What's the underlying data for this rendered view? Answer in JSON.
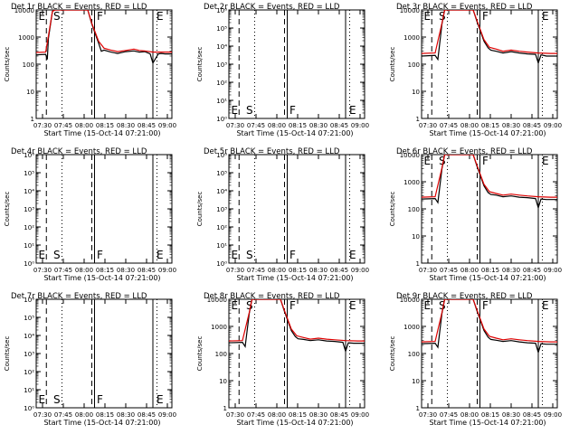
{
  "chart_data": [
    {
      "type": "line",
      "title": "Det 1r BLACK = Events, RED = LLD",
      "xlabel": "Start Time (15-Oct-14 07:21:00)",
      "ylabel": "Counts/sec",
      "yscale": "log",
      "ylim": [
        1,
        10000
      ],
      "yticks": [
        "1",
        "10",
        "100",
        "1000",
        "10000"
      ],
      "xticks": [
        "07:30",
        "07:45",
        "08:00",
        "08:15",
        "08:30",
        "08:45",
        "09:00"
      ],
      "markers": [
        "E",
        "S",
        "F",
        "E"
      ],
      "has_data": true,
      "series": [
        {
          "color": "#000000",
          "x": [
            0.0,
            0.07,
            0.082,
            0.09,
            0.12,
            0.14,
            0.16,
            0.18,
            0.2,
            0.21,
            0.22,
            0.24,
            0.26,
            0.27,
            0.3,
            0.32,
            0.36,
            0.38,
            0.41,
            0.46,
            0.48,
            0.5,
            0.55,
            0.6,
            0.66,
            0.72,
            0.76,
            0.8,
            0.84,
            0.86,
            0.9,
            0.92,
            0.95,
            1.0
          ],
          "y": [
            220,
            230,
            150,
            900,
            9000,
            9999,
            9999,
            9999,
            9999,
            9999,
            9999,
            9999,
            9999,
            9999,
            9999,
            9999,
            9999,
            9999,
            3000,
            600,
            300,
            330,
            280,
            250,
            290,
            310,
            280,
            290,
            240,
            110,
            240,
            250,
            240,
            240
          ]
        },
        {
          "color": "#dd0000",
          "x": [
            0.0,
            0.07,
            0.09,
            0.12,
            0.14,
            0.2,
            0.3,
            0.36,
            0.38,
            0.41,
            0.46,
            0.5,
            0.55,
            0.6,
            0.66,
            0.72,
            0.76,
            0.8,
            0.86,
            0.95,
            1.0
          ],
          "y": [
            270,
            280,
            1100,
            9000,
            9999,
            9999,
            9999,
            9999,
            9999,
            3200,
            700,
            390,
            330,
            290,
            320,
            360,
            320,
            310,
            280,
            280,
            280
          ]
        }
      ]
    },
    {
      "type": "line",
      "title": "Det 2r BLACK = Events, RED = LLD",
      "xlabel": "Start Time (15-Oct-14 07:21:00)",
      "ylabel": "Counts/sec",
      "yscale": "log",
      "ylim": [
        1,
        1000000
      ],
      "yticks": [
        "10⁰",
        "10¹",
        "10²",
        "10³",
        "10⁴",
        "10⁵",
        "10⁶"
      ],
      "xticks": [
        "07:30",
        "07:45",
        "08:00",
        "08:15",
        "08:30",
        "08:45",
        "09:00"
      ],
      "markers": [
        "E",
        "S",
        "F",
        "E"
      ],
      "has_data": false,
      "series": []
    },
    {
      "type": "line",
      "title": "Det 3r BLACK = Events, RED = LLD",
      "xlabel": "Start Time (15-Oct-14 07:21:00)",
      "ylabel": "Counts/sec",
      "yscale": "log",
      "ylim": [
        1,
        10000
      ],
      "yticks": [
        "1",
        "10",
        "100",
        "1000",
        "10000"
      ],
      "xticks": [
        "07:30",
        "07:45",
        "08:00",
        "08:15",
        "08:30",
        "08:45",
        "09:00"
      ],
      "markers": [
        "E",
        "S",
        "F",
        "E"
      ],
      "has_data": true,
      "series": [
        {
          "color": "#000000",
          "x": [
            0.0,
            0.1,
            0.12,
            0.15,
            0.17,
            0.2,
            0.3,
            0.38,
            0.41,
            0.46,
            0.49,
            0.51,
            0.55,
            0.6,
            0.66,
            0.72,
            0.78,
            0.84,
            0.86,
            0.88,
            0.92,
            0.95,
            1.0
          ],
          "y": [
            200,
            210,
            150,
            3000,
            9999,
            9999,
            9999,
            9999,
            3500,
            700,
            400,
            330,
            300,
            260,
            290,
            260,
            240,
            230,
            110,
            220,
            200,
            200,
            200
          ]
        },
        {
          "color": "#dd0000",
          "x": [
            0.0,
            0.1,
            0.15,
            0.17,
            0.2,
            0.3,
            0.38,
            0.41,
            0.46,
            0.5,
            0.55,
            0.6,
            0.66,
            0.72,
            0.78,
            0.86,
            0.95,
            1.0
          ],
          "y": [
            250,
            260,
            3200,
            9999,
            9999,
            9999,
            9999,
            3800,
            800,
            420,
            360,
            300,
            330,
            300,
            280,
            260,
            250,
            250
          ]
        }
      ]
    },
    {
      "type": "line",
      "title": "Det 4r BLACK = Events, RED = LLD",
      "xlabel": "Start Time (15-Oct-14 07:21:00)",
      "ylabel": "Counts/sec",
      "yscale": "log",
      "ylim": [
        1,
        1000000
      ],
      "yticks": [
        "10⁰",
        "10¹",
        "10²",
        "10³",
        "10⁴",
        "10⁵",
        "10⁶"
      ],
      "xticks": [
        "07:30",
        "07:45",
        "08:00",
        "08:15",
        "08:30",
        "08:45",
        "09:00"
      ],
      "markers": [
        "E",
        "S",
        "F",
        "E"
      ],
      "has_data": false,
      "series": []
    },
    {
      "type": "line",
      "title": "Det 5r BLACK = Events, RED = LLD",
      "xlabel": "Start Time (15-Oct-14 07:21:00)",
      "ylabel": "Counts/sec",
      "yscale": "log",
      "ylim": [
        1,
        1000000
      ],
      "yticks": [
        "10⁰",
        "10¹",
        "10²",
        "10³",
        "10⁴",
        "10⁵",
        "10⁶"
      ],
      "xticks": [
        "07:30",
        "07:45",
        "08:00",
        "08:15",
        "08:30",
        "08:45",
        "09:00"
      ],
      "markers": [
        "E",
        "S",
        "F",
        "E"
      ],
      "has_data": false,
      "series": []
    },
    {
      "type": "line",
      "title": "Det 6r BLACK = Events, RED = LLD",
      "xlabel": "Start Time (15-Oct-14 07:21:00)",
      "ylabel": "Counts/sec",
      "yscale": "log",
      "ylim": [
        1,
        10000
      ],
      "yticks": [
        "1",
        "10",
        "100",
        "1000",
        "10000"
      ],
      "xticks": [
        "07:30",
        "07:45",
        "08:00",
        "08:15",
        "08:30",
        "08:45",
        "09:00"
      ],
      "markers": [
        "E",
        "S",
        "F",
        "E"
      ],
      "has_data": true,
      "series": [
        {
          "color": "#000000",
          "x": [
            0.0,
            0.1,
            0.12,
            0.15,
            0.17,
            0.2,
            0.3,
            0.38,
            0.41,
            0.46,
            0.49,
            0.51,
            0.55,
            0.6,
            0.66,
            0.72,
            0.78,
            0.84,
            0.86,
            0.88,
            0.92,
            0.95,
            1.0
          ],
          "y": [
            230,
            240,
            170,
            3000,
            9999,
            9999,
            9999,
            9999,
            3500,
            700,
            400,
            340,
            320,
            280,
            300,
            270,
            260,
            240,
            110,
            230,
            220,
            220,
            220
          ]
        },
        {
          "color": "#dd0000",
          "x": [
            0.0,
            0.1,
            0.15,
            0.17,
            0.2,
            0.3,
            0.38,
            0.41,
            0.46,
            0.5,
            0.55,
            0.6,
            0.66,
            0.72,
            0.78,
            0.86,
            0.95,
            1.0
          ],
          "y": [
            270,
            280,
            3200,
            9999,
            9999,
            9999,
            9999,
            3800,
            800,
            430,
            370,
            320,
            350,
            320,
            300,
            280,
            270,
            270
          ]
        }
      ]
    },
    {
      "type": "line",
      "title": "Det 7r BLACK = Events, RED = LLD",
      "xlabel": "Start Time (15-Oct-14 07:21:00)",
      "ylabel": "Counts/sec",
      "yscale": "log",
      "ylim": [
        1,
        1000000
      ],
      "yticks": [
        "10⁰",
        "10¹",
        "10²",
        "10³",
        "10⁴",
        "10⁵",
        "10⁶"
      ],
      "xticks": [
        "07:30",
        "07:45",
        "08:00",
        "08:15",
        "08:30",
        "08:45",
        "09:00"
      ],
      "markers": [
        "E",
        "S",
        "F",
        "E"
      ],
      "has_data": false,
      "series": []
    },
    {
      "type": "line",
      "title": "Det 8r BLACK = Events, RED = LLD",
      "xlabel": "Start Time (15-Oct-14 07:21:00)",
      "ylabel": "Counts/sec",
      "yscale": "log",
      "ylim": [
        1,
        10000
      ],
      "yticks": [
        "1",
        "10",
        "100",
        "1000",
        "10000"
      ],
      "xticks": [
        "07:30",
        "07:45",
        "08:00",
        "08:15",
        "08:30",
        "08:45",
        "09:00"
      ],
      "markers": [
        "E",
        "S",
        "F",
        "E"
      ],
      "has_data": true,
      "series": [
        {
          "color": "#000000",
          "x": [
            0.0,
            0.1,
            0.12,
            0.15,
            0.17,
            0.2,
            0.3,
            0.38,
            0.41,
            0.46,
            0.49,
            0.51,
            0.55,
            0.6,
            0.66,
            0.72,
            0.78,
            0.84,
            0.86,
            0.88,
            0.92,
            0.95,
            1.0
          ],
          "y": [
            250,
            260,
            180,
            3000,
            9999,
            9999,
            9999,
            9999,
            3500,
            700,
            420,
            350,
            330,
            300,
            320,
            290,
            280,
            260,
            120,
            250,
            240,
            240,
            240
          ]
        },
        {
          "color": "#dd0000",
          "x": [
            0.0,
            0.1,
            0.15,
            0.17,
            0.2,
            0.3,
            0.38,
            0.41,
            0.46,
            0.5,
            0.55,
            0.6,
            0.66,
            0.72,
            0.78,
            0.86,
            0.95,
            1.0
          ],
          "y": [
            290,
            300,
            3200,
            9999,
            9999,
            9999,
            9999,
            3800,
            800,
            450,
            390,
            340,
            370,
            340,
            320,
            300,
            290,
            290
          ]
        }
      ]
    },
    {
      "type": "line",
      "title": "Det 9r BLACK = Events, RED = LLD",
      "xlabel": "Start Time (15-Oct-14 07:21:00)",
      "ylabel": "Counts/sec",
      "yscale": "log",
      "ylim": [
        1,
        10000
      ],
      "yticks": [
        "1",
        "10",
        "100",
        "1000",
        "10000"
      ],
      "xticks": [
        "07:30",
        "07:45",
        "08:00",
        "08:15",
        "08:30",
        "08:45",
        "09:00"
      ],
      "markers": [
        "E",
        "S",
        "F",
        "E"
      ],
      "has_data": true,
      "series": [
        {
          "color": "#000000",
          "x": [
            0.0,
            0.1,
            0.12,
            0.15,
            0.17,
            0.2,
            0.3,
            0.38,
            0.41,
            0.46,
            0.49,
            0.51,
            0.55,
            0.6,
            0.66,
            0.72,
            0.78,
            0.84,
            0.86,
            0.88,
            0.92,
            0.95,
            1.0
          ],
          "y": [
            230,
            240,
            170,
            3000,
            9999,
            9999,
            9999,
            9999,
            3500,
            700,
            400,
            330,
            310,
            280,
            300,
            270,
            250,
            240,
            110,
            230,
            220,
            220,
            220
          ]
        },
        {
          "color": "#dd0000",
          "x": [
            0.0,
            0.1,
            0.15,
            0.17,
            0.2,
            0.3,
            0.38,
            0.41,
            0.46,
            0.5,
            0.55,
            0.6,
            0.66,
            0.72,
            0.78,
            0.86,
            0.95,
            1.0
          ],
          "y": [
            270,
            280,
            3200,
            9999,
            9999,
            9999,
            9999,
            3800,
            800,
            430,
            370,
            320,
            350,
            320,
            300,
            280,
            270,
            270
          ]
        }
      ]
    }
  ]
}
